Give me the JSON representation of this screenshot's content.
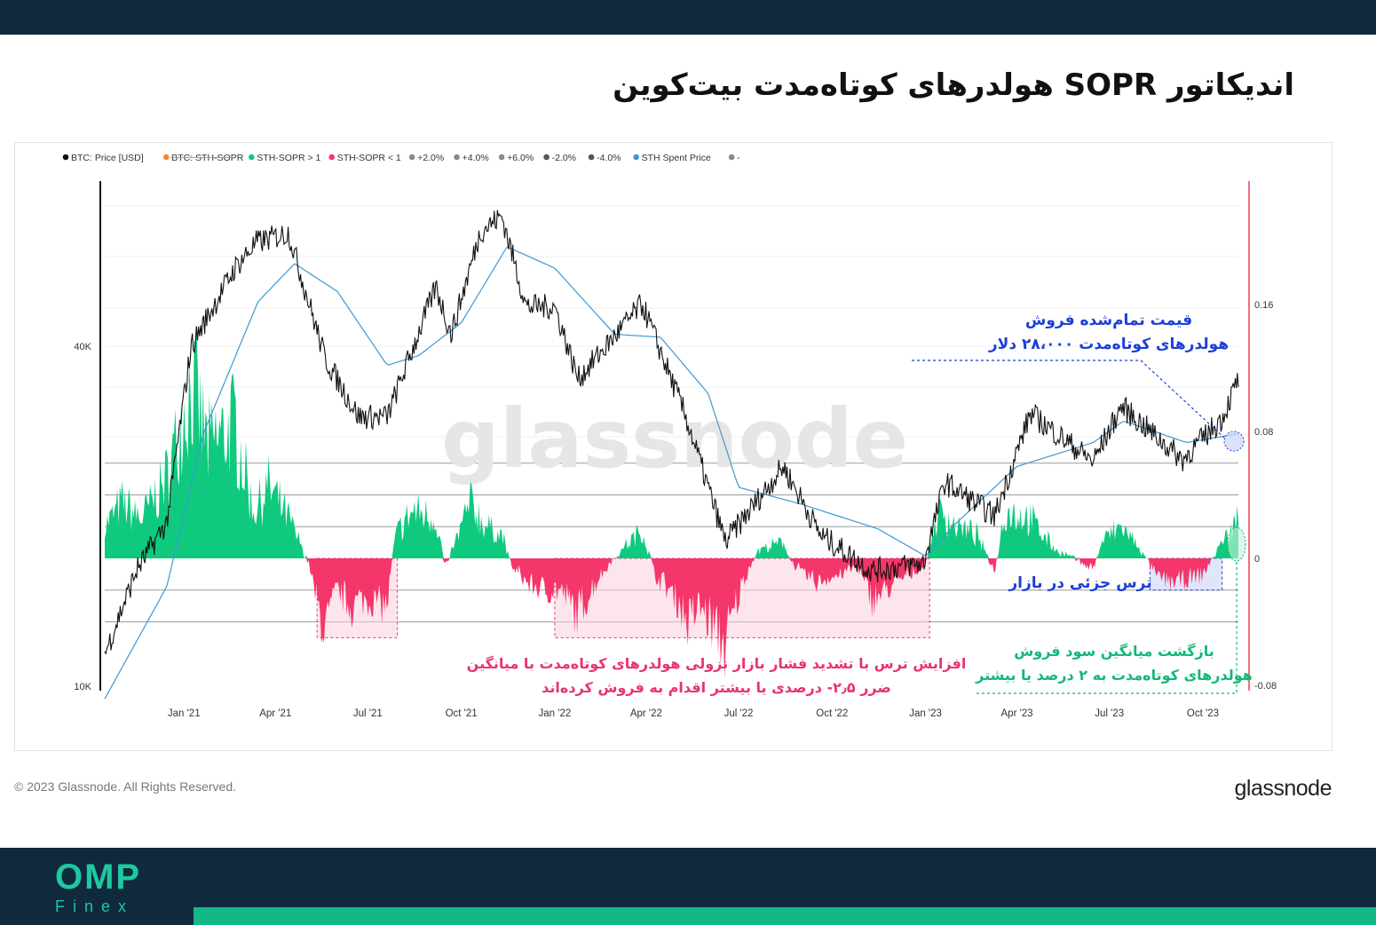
{
  "header": {
    "title": "اندیکاتور SOPR هولدرهای کوتاه‌مدت بیت‌کوین"
  },
  "footer": {
    "copyright": "© 2023 Glassnode. All Rights Reserved.",
    "brand": "glassnode",
    "logo_top": "OMP",
    "logo_bottom": "Finex"
  },
  "colors": {
    "price": "#111111",
    "sopr_pos": "#0fc97e",
    "sopr_neg": "#f4366a",
    "spent_price": "#3d97d4",
    "annot_blue": "#1e3ed6",
    "annot_red": "#e8346a",
    "annot_green": "#13b876",
    "band_pink": "#fbd0df",
    "band_blue": "#cbd5f7",
    "cursor": "#ef3d57"
  },
  "chart_data": {
    "type": "line",
    "title": "",
    "watermark": "glassnode",
    "legend": [
      {
        "label": "BTC: Price [USD]",
        "color": "#111111"
      },
      {
        "label": "BTC: STH-SOPR",
        "color": "#f08a34",
        "struck": true
      },
      {
        "label": "STH-SOPR > 1",
        "color": "#0fc97e"
      },
      {
        "label": "STH-SOPR < 1",
        "color": "#f4366a"
      },
      {
        "label": "+2.0%",
        "color": "#8a8a8a"
      },
      {
        "label": "+4.0%",
        "color": "#8a8a8a"
      },
      {
        "label": "+6.0%",
        "color": "#8a8a8a"
      },
      {
        "label": "-2.0%",
        "color": "#555555"
      },
      {
        "label": "-4.0%",
        "color": "#555555"
      },
      {
        "label": "STH Spent Price",
        "color": "#3d97d4"
      },
      {
        "label": "-",
        "color": "#888888"
      }
    ],
    "x_ticks": [
      "Jan '21",
      "Apr '21",
      "Jul '21",
      "Oct '21",
      "Jan '22",
      "Apr '22",
      "Jul '22",
      "Oct '22",
      "Jan '23",
      "Apr '23",
      "Jul '23",
      "Oct '23"
    ],
    "x_range": [
      "2020-10-15",
      "2023-11-05"
    ],
    "y_left": {
      "scale": "log",
      "ticks": [
        "10K",
        "40K"
      ],
      "range": [
        10000,
        70000
      ]
    },
    "y_right": {
      "ticks": [
        "0.16",
        "0.08",
        "0",
        "-0.08"
      ],
      "range": [
        -0.08,
        0.2
      ]
    },
    "sopr_thresholds": [
      0.06,
      0.04,
      0.02,
      -0.02,
      -0.04
    ],
    "btc_price": {
      "x": [
        "2020-10-15",
        "2020-11-15",
        "2020-12-15",
        "2021-01-08",
        "2021-02-20",
        "2021-03-13",
        "2021-04-14",
        "2021-05-20",
        "2021-06-22",
        "2021-07-20",
        "2021-09-06",
        "2021-09-21",
        "2021-10-20",
        "2021-11-10",
        "2021-12-04",
        "2022-01-01",
        "2022-01-24",
        "2022-03-28",
        "2022-05-10",
        "2022-06-18",
        "2022-08-14",
        "2022-09-20",
        "2022-11-09",
        "2022-12-30",
        "2023-01-20",
        "2023-03-10",
        "2023-04-14",
        "2023-06-15",
        "2023-07-13",
        "2023-09-11",
        "2023-10-20",
        "2023-11-05"
      ],
      "values": [
        11400,
        16000,
        19500,
        40000,
        55000,
        61000,
        63500,
        38000,
        30000,
        30000,
        51000,
        42000,
        64000,
        68000,
        47000,
        47000,
        35000,
        47500,
        30000,
        18000,
        24500,
        18500,
        16000,
        16500,
        23000,
        20000,
        30400,
        25000,
        31300,
        25200,
        29800,
        35000
      ]
    },
    "sth_spent_price": {
      "x": [
        "2020-10-15",
        "2020-12-15",
        "2021-01-20",
        "2021-03-15",
        "2021-04-20",
        "2021-06-01",
        "2021-07-20",
        "2021-08-20",
        "2021-10-01",
        "2021-11-15",
        "2022-01-01",
        "2022-03-01",
        "2022-04-15",
        "2022-06-01",
        "2022-07-01",
        "2022-09-01",
        "2022-11-15",
        "2023-01-01",
        "2023-02-01",
        "2023-04-01",
        "2023-06-15",
        "2023-07-15",
        "2023-09-15",
        "2023-11-05"
      ],
      "values": [
        9500,
        15000,
        28000,
        48000,
        56000,
        50000,
        37000,
        38500,
        44000,
        60000,
        55000,
        42000,
        41500,
        33000,
        22500,
        21000,
        19000,
        17000,
        19500,
        24500,
        27000,
        29500,
        27000,
        28000
      ]
    },
    "sth_sopr": {
      "x": [
        "2020-10-15",
        "2020-11-01",
        "2020-11-20",
        "2020-12-15",
        "2021-01-08",
        "2021-01-25",
        "2021-02-20",
        "2021-03-10",
        "2021-03-25",
        "2021-04-14",
        "2021-04-25",
        "2021-05-05",
        "2021-05-12",
        "2021-05-20",
        "2021-06-01",
        "2021-06-15",
        "2021-07-01",
        "2021-07-20",
        "2021-07-28",
        "2021-08-15",
        "2021-09-06",
        "2021-09-15",
        "2021-09-25",
        "2021-10-10",
        "2021-10-25",
        "2021-11-10",
        "2021-11-20",
        "2021-12-04",
        "2021-12-20",
        "2022-01-05",
        "2022-01-24",
        "2022-02-10",
        "2022-03-01",
        "2022-03-28",
        "2022-04-10",
        "2022-05-01",
        "2022-05-12",
        "2022-05-25",
        "2022-06-18",
        "2022-07-05",
        "2022-07-20",
        "2022-08-14",
        "2022-08-25",
        "2022-09-15",
        "2022-10-10",
        "2022-10-25",
        "2022-11-09",
        "2022-11-25",
        "2022-12-15",
        "2022-12-31",
        "2023-01-14",
        "2023-02-01",
        "2023-02-20",
        "2023-03-10",
        "2023-03-20",
        "2023-04-14",
        "2023-05-10",
        "2023-06-15",
        "2023-06-25",
        "2023-07-13",
        "2023-08-01",
        "2023-08-17",
        "2023-09-10",
        "2023-10-01",
        "2023-10-20",
        "2023-11-05"
      ],
      "values": [
        0.02,
        0.035,
        0.025,
        0.05,
        0.11,
        0.07,
        0.085,
        0.03,
        0.045,
        0.025,
        0.01,
        -0.005,
        -0.03,
        -0.045,
        -0.02,
        -0.03,
        -0.025,
        -0.03,
        0.015,
        0.03,
        0.025,
        -0.005,
        0.01,
        0.035,
        0.02,
        0.015,
        -0.005,
        -0.015,
        -0.02,
        -0.02,
        -0.035,
        -0.015,
        0.001,
        0.018,
        -0.01,
        -0.025,
        -0.04,
        -0.03,
        -0.055,
        -0.015,
        0.005,
        0.01,
        -0.005,
        -0.015,
        -0.01,
        -0.005,
        -0.025,
        -0.02,
        -0.01,
        -0.005,
        0.03,
        0.02,
        0.015,
        -0.008,
        0.03,
        0.025,
        0.005,
        -0.006,
        0.012,
        0.02,
        0.005,
        -0.012,
        -0.015,
        -0.01,
        0.01,
        0.025
      ]
    },
    "annotations": [
      {
        "id": "spent-price",
        "color": "#1e3ed6",
        "lines": [
          "قیمت تمام‌شده فروش",
          "هولدرهای کوتاه‌مدت ۲۸،۰۰۰ دلار"
        ]
      },
      {
        "id": "fear",
        "color": "#1e3ed6",
        "lines": [
          "ترس جزئی در بازار"
        ]
      },
      {
        "id": "bear-pressure",
        "color": "#e8346a",
        "lines": [
          "افزایش ترس با تشدید فشار بازار نزولی هولدرهای کوتاه‌مدت با میانگین",
          "ضرر ۲٫۵- درصدی یا بیشتر اقدام به فروش کرده‌اند"
        ]
      },
      {
        "id": "profit-return",
        "color": "#13b876",
        "lines": [
          "بازگشت میانگین سود فروش",
          "هولدرهای کوتاه‌مدت به ۲ درصد یا بیشتر"
        ]
      }
    ]
  }
}
